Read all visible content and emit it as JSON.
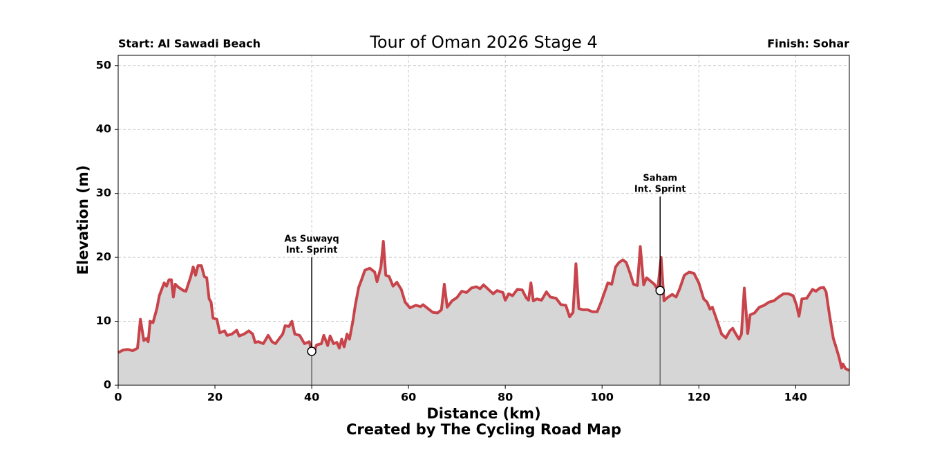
{
  "chart_data": {
    "type": "area",
    "title": "Tour of Oman 2026 Stage 4",
    "start_label": "Start: Al Sawadi Beach",
    "finish_label": "Finish: Sohar",
    "xlabel": "Distance (km)",
    "ylabel": "Elevation (m)",
    "footer": "Created by The Cycling Road Map",
    "xlim": [
      0,
      151.1
    ],
    "ylim": [
      0,
      51.6
    ],
    "xticks": [
      0,
      20,
      40,
      60,
      80,
      100,
      120,
      140
    ],
    "yticks": [
      0,
      10,
      20,
      30,
      40,
      50
    ],
    "grid": true,
    "x": [
      0,
      1,
      2,
      3,
      4,
      4.6,
      5.3,
      5.8,
      6.2,
      6.6,
      7.2,
      8,
      8.5,
      9.5,
      10,
      10.5,
      11,
      11.4,
      11.8,
      12.5,
      13.5,
      14,
      15,
      15.5,
      16,
      16.5,
      17.2,
      17.8,
      18.3,
      18.8,
      19.2,
      19.6,
      20.4,
      21,
      22,
      22.5,
      23.5,
      24.5,
      25,
      26,
      27,
      27.8,
      28.3,
      29,
      30,
      31,
      31.8,
      32.5,
      33.5,
      34,
      34.5,
      35.3,
      35.9,
      36.5,
      37.5,
      38.5,
      39.5,
      40,
      40.5,
      41,
      42,
      42.5,
      43.3,
      43.8,
      44.5,
      45.2,
      45.7,
      46.2,
      46.7,
      47.3,
      47.8,
      48.5,
      49,
      49.7,
      50.3,
      51,
      52,
      53,
      53.5,
      54.3,
      54.8,
      55.3,
      56,
      56.8,
      57.6,
      58.5,
      59.3,
      60.3,
      61.5,
      62.5,
      63,
      64,
      65,
      66,
      66.8,
      67.4,
      68,
      69,
      70,
      71,
      72,
      73,
      74,
      74.8,
      75.5,
      76.5,
      77.5,
      78.3,
      79.5,
      80,
      80.7,
      81.5,
      82.5,
      83.5,
      84.3,
      84.8,
      85.3,
      85.8,
      86.5,
      87.5,
      88.5,
      89.3,
      90.5,
      91.5,
      92.5,
      93.3,
      94,
      94.6,
      95.2,
      96,
      97,
      98,
      99,
      99.8,
      100.5,
      101.2,
      102,
      102.8,
      103.5,
      104.3,
      105,
      105.8,
      106.5,
      107.3,
      107.9,
      108.6,
      109.2,
      110,
      110.8,
      111.5,
      112.2,
      112.8,
      113.5,
      114.5,
      115.3,
      116,
      117,
      118,
      119,
      120,
      121,
      121.7,
      122.3,
      122.8,
      123.8,
      124.7,
      125.6,
      126.4,
      127,
      127.5,
      128.3,
      128.8,
      129.4,
      130.1,
      130.6,
      131.5,
      132.5,
      133.5,
      134.5,
      135.5,
      136.5,
      137.5,
      138.5,
      139.5,
      140.2,
      140.7,
      141.3,
      142.3,
      143.5,
      144.2,
      145,
      145.8,
      146.3,
      147,
      147.8,
      148.3,
      149,
      149.5,
      149.8,
      150.3,
      151.1
    ],
    "series": [
      {
        "color": "#c8434a",
        "fill": "#d6d6d6",
        "values": [
          5.1,
          5.5,
          5.6,
          5.4,
          5.8,
          10.3,
          7.0,
          7.3,
          6.8,
          10,
          9.8,
          12,
          14,
          16,
          15.5,
          16.5,
          16.5,
          13.8,
          15.8,
          15.3,
          14.8,
          14.7,
          17,
          18.5,
          17.2,
          18.7,
          18.7,
          17,
          16.8,
          13.5,
          13,
          10.5,
          10.3,
          8.2,
          8.5,
          7.8,
          8,
          8.6,
          7.7,
          8,
          8.5,
          8,
          6.7,
          6.8,
          6.5,
          7.8,
          6.8,
          6.5,
          7.5,
          8,
          9.3,
          9.2,
          10,
          8,
          7.8,
          6.5,
          6.8,
          5.3,
          5.2,
          6.3,
          6.5,
          7.8,
          6.2,
          7.7,
          6.5,
          6.7,
          5.8,
          7.2,
          6.0,
          8.0,
          7.2,
          10,
          12.5,
          15.3,
          16.5,
          18,
          18.3,
          17.7,
          16.2,
          18.5,
          22.5,
          17.2,
          17,
          15.5,
          16.1,
          15,
          13,
          12.1,
          12.5,
          12.3,
          12.6,
          12,
          11.4,
          11.3,
          11.8,
          15.8,
          12.2,
          13.2,
          13.7,
          14.7,
          14.5,
          15.2,
          15.4,
          15.1,
          15.7,
          15.0,
          14.3,
          14.8,
          14.5,
          13.3,
          14.3,
          14.0,
          15.0,
          14.9,
          13.7,
          13.3,
          16,
          13.2,
          13.5,
          13.3,
          14.6,
          13.8,
          13.6,
          12.6,
          12.5,
          10.7,
          11.4,
          19,
          12,
          11.8,
          11.8,
          11.5,
          11.5,
          13,
          14.5,
          16,
          15.8,
          18.5,
          19.2,
          19.6,
          19.2,
          17.5,
          15.8,
          15.6,
          21.7,
          15.7,
          16.8,
          16.3,
          15.8,
          14.9,
          20,
          13.2,
          13.7,
          14.2,
          13.8,
          15,
          17.2,
          17.7,
          17.5,
          16,
          13.5,
          13,
          11.9,
          12.2,
          10,
          8,
          7.4,
          8.5,
          8.9,
          8.2,
          7.2,
          8,
          15.2,
          8.1,
          11,
          11.3,
          12.2,
          12.5,
          13.0,
          13.2,
          13.8,
          14.3,
          14.3,
          14.0,
          12.5,
          10.8,
          13.5,
          13.6,
          15.0,
          14.7,
          15.2,
          15.3,
          14.6,
          11,
          7.3,
          6.1,
          4.3,
          2.7,
          3.3,
          2.6,
          2.3
        ]
      }
    ],
    "annotations": [
      {
        "x": 40,
        "y": 5.3,
        "label": [
          "As Suwayq",
          "Int. Sprint"
        ]
      },
      {
        "x": 112,
        "y": 14.8,
        "label": [
          "Saham",
          "Int. Sprint"
        ]
      }
    ]
  }
}
